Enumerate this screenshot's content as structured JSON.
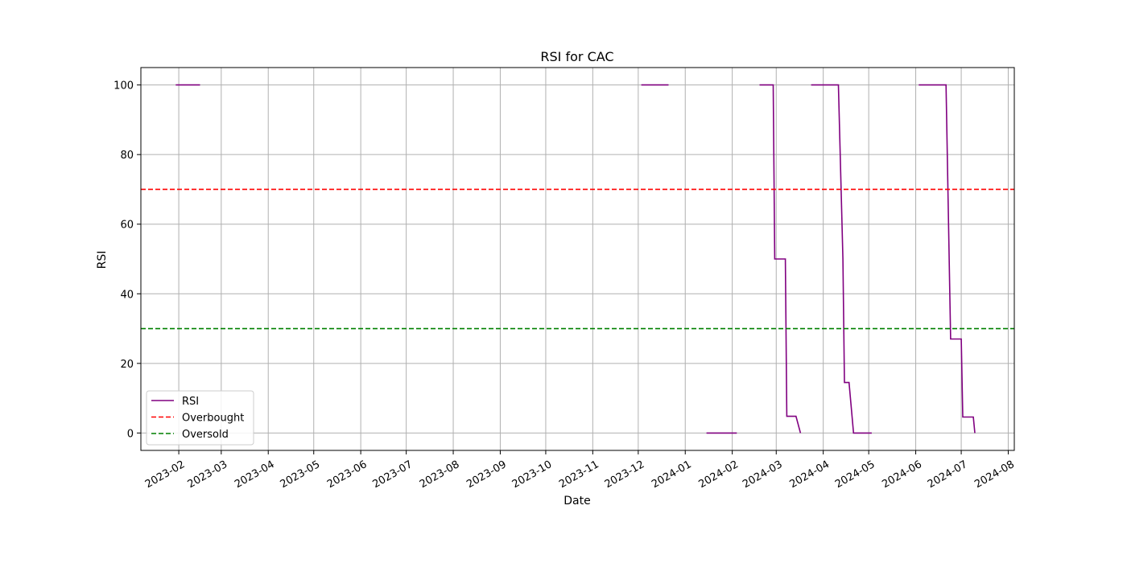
{
  "chart_data": {
    "type": "line",
    "title": "RSI for CAC",
    "xlabel": "Date",
    "ylabel": "RSI",
    "xlim": [
      "2023-01-07",
      "2024-08-05"
    ],
    "ylim": [
      -5,
      105
    ],
    "grid": true,
    "legend_position": "lower-left",
    "x_ticks": [
      "2023-02",
      "2023-03",
      "2023-04",
      "2023-05",
      "2023-06",
      "2023-07",
      "2023-08",
      "2023-09",
      "2023-10",
      "2023-11",
      "2023-12",
      "2024-01",
      "2024-02",
      "2024-03",
      "2024-04",
      "2024-05",
      "2024-06",
      "2024-07",
      "2024-08"
    ],
    "y_ticks": [
      0,
      20,
      40,
      60,
      80,
      100
    ],
    "series": [
      {
        "name": "RSI",
        "color": "#800080",
        "style": "solid",
        "segments": [
          [
            [
              "2023-01-30",
              100
            ],
            [
              "2023-02-15",
              100
            ]
          ],
          [
            [
              "2023-12-03",
              100
            ],
            [
              "2023-12-21",
              100
            ]
          ],
          [
            [
              "2024-01-15",
              0
            ],
            [
              "2024-02-04",
              0
            ]
          ],
          [
            [
              "2024-02-19",
              100
            ],
            [
              "2024-02-28",
              100
            ],
            [
              "2024-02-29",
              50
            ],
            [
              "2024-03-07",
              50
            ],
            [
              "2024-03-08",
              4.8
            ],
            [
              "2024-03-14",
              4.8
            ],
            [
              "2024-03-17",
              0
            ]
          ],
          [
            [
              "2024-03-24",
              100
            ],
            [
              "2024-04-11",
              100
            ],
            [
              "2024-04-14",
              50
            ],
            [
              "2024-04-15",
              14.5
            ],
            [
              "2024-04-18",
              14.5
            ],
            [
              "2024-04-21",
              0
            ],
            [
              "2024-05-03",
              0
            ]
          ],
          [
            [
              "2024-06-03",
              100
            ],
            [
              "2024-06-21",
              100
            ],
            [
              "2024-06-24",
              27
            ],
            [
              "2024-07-01",
              27
            ],
            [
              "2024-07-02",
              4.6
            ],
            [
              "2024-07-09",
              4.6
            ],
            [
              "2024-07-10",
              0
            ]
          ]
        ]
      },
      {
        "name": "Overbought",
        "color": "#ff0000",
        "style": "dashed",
        "y": 70
      },
      {
        "name": "Oversold",
        "color": "#008000",
        "style": "dashed",
        "y": 30
      }
    ]
  }
}
